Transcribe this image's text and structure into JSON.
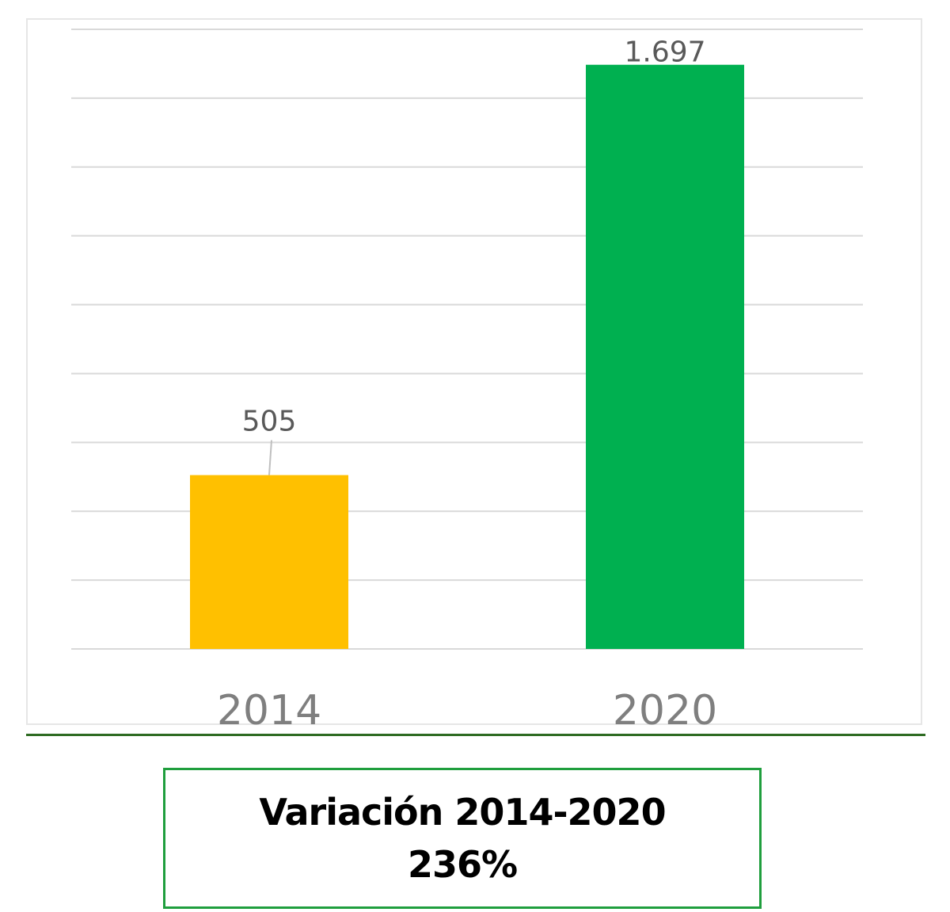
{
  "chart_data": {
    "type": "bar",
    "categories": [
      "2014",
      "2020"
    ],
    "values": [
      505,
      1697
    ],
    "data_labels": [
      "505",
      "1.697"
    ],
    "colors": [
      "#ffc000",
      "#00b050"
    ],
    "ylim": [
      0,
      1800
    ],
    "gridlines": true,
    "legend": "none",
    "title": "",
    "xlabel": "",
    "ylabel": ""
  },
  "summary": {
    "title": "Variación 2014-2020",
    "value": "236%"
  },
  "style": {
    "gridline_color": "#d9d9d9",
    "label_color": "#595959",
    "box_border": "#1f9e3d",
    "divider": "#2e6b22"
  }
}
